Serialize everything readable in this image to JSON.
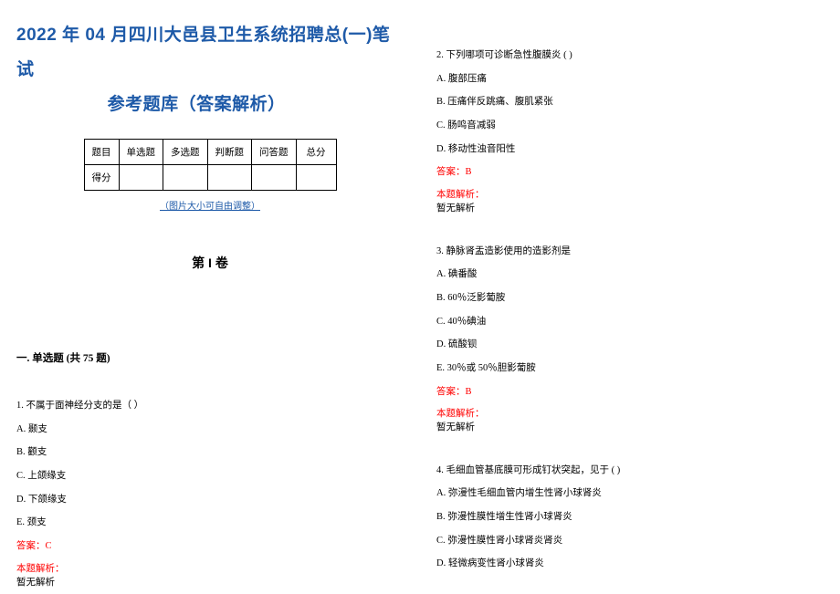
{
  "title": {
    "line1": "2022 年 04 月四川大邑县卫生系统招聘总(一)笔试",
    "line2": "参考题库（答案解析）"
  },
  "score_table": {
    "headers": [
      "题目",
      "单选题",
      "多选题",
      "判断题",
      "问答题",
      "总分"
    ],
    "row_label": "得分"
  },
  "image_note": "（图片大小可自由调整）",
  "volume_heading": "第 I 卷",
  "section_heading": "一. 单选题 (共 75 题)",
  "answer_prefix": "答案：",
  "explain_label": "本题解析：",
  "no_explain": "暂无解析",
  "questions": [
    {
      "num": "1",
      "stem": "1. 不属于面神经分支的是（ ）",
      "options": [
        "A. 颞支",
        "B. 颧支",
        "C. 上颌缘支",
        "D. 下颌缘支",
        "E. 颈支"
      ],
      "answer": "C"
    },
    {
      "num": "2",
      "stem": "2. 下列哪项可诊断急性腹膜炎 ( )",
      "options": [
        "A. 腹部压痛",
        "B. 压痛伴反跳痛、腹肌紧张",
        "C. 肠鸣音减弱",
        "D. 移动性浊音阳性"
      ],
      "answer": "B"
    },
    {
      "num": "3",
      "stem": "3. 静脉肾盂造影使用的造影剂是",
      "options": [
        "A. 碘番酸",
        "B. 60％泛影葡胺",
        "C. 40％碘油",
        "D. 硫酸钡",
        "E. 30％或 50％胆影葡胺"
      ],
      "answer": "B"
    },
    {
      "num": "4",
      "stem": "4. 毛细血管基底膜可形成钉状突起，见于 ( )",
      "options": [
        "A. 弥漫性毛细血管内增生性肾小球肾炎",
        "B. 弥漫性膜性增生性肾小球肾炎",
        "C. 弥漫性膜性肾小球肾炎肾炎",
        "D. 轻微病变性肾小球肾炎"
      ],
      "answer": ""
    }
  ],
  "colors": {
    "title": "#1e5aa8",
    "answer": "#ff0000",
    "text": "#000000",
    "bg": "#ffffff"
  }
}
